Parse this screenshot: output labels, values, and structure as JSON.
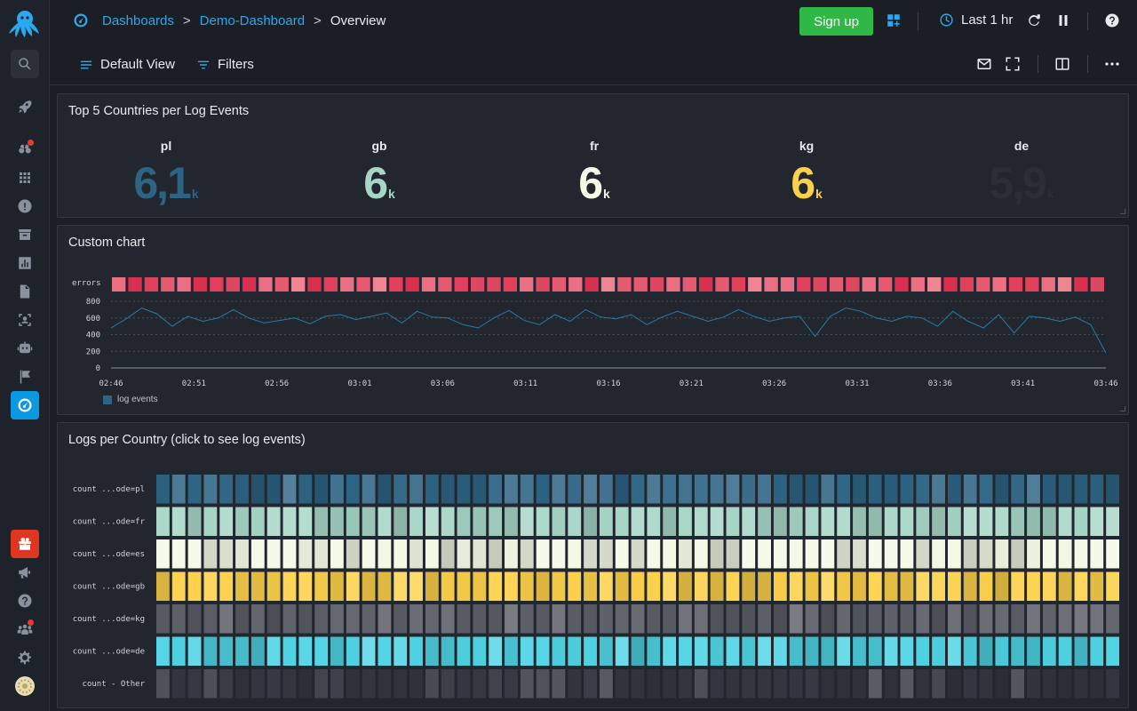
{
  "breadcrumb": {
    "root": "Dashboards",
    "dashboard": "Demo-Dashboard",
    "current": "Overview",
    "sep": ">"
  },
  "topbar": {
    "signup_label": "Sign up",
    "time_range": "Last 1 hr"
  },
  "toolbar": {
    "default_view": "Default View",
    "filters": "Filters"
  },
  "panels": {
    "top_countries": {
      "title": "Top 5 Countries per Log Events",
      "stats": [
        {
          "label": "pl",
          "value": "6,1",
          "unit": "k",
          "color": "#2d6383"
        },
        {
          "label": "gb",
          "value": "6",
          "unit": "k",
          "color": "#a7d6c7"
        },
        {
          "label": "fr",
          "value": "6",
          "unit": "k",
          "color": "#f4f9e6"
        },
        {
          "label": "kg",
          "value": "6",
          "unit": "k",
          "color": "#fcd14a"
        },
        {
          "label": "de",
          "value": "5,9",
          "unit": "k",
          "color": "#2a2e36"
        }
      ]
    },
    "custom_chart": {
      "title": "Custom chart"
    },
    "logs_per_country": {
      "title": "Logs per Country (click to see log events)"
    }
  },
  "chart_data": [
    {
      "type": "line",
      "title": "Custom chart",
      "xlabel": "",
      "ylabel": "",
      "x_ticks": [
        "02:46",
        "02:51",
        "02:56",
        "03:01",
        "03:06",
        "03:11",
        "03:16",
        "03:21",
        "03:26",
        "03:31",
        "03:36",
        "03:41",
        "03:46"
      ],
      "y_ticks": [
        0,
        200,
        400,
        600,
        800
      ],
      "ylim": [
        0,
        800
      ],
      "heat_row_label": "errors",
      "heat_row_cells": 61,
      "legend": "bottom-left",
      "series": [
        {
          "name": "log events",
          "color": "#2d6383",
          "values": [
            480,
            590,
            720,
            650,
            500,
            620,
            560,
            600,
            700,
            600,
            540,
            570,
            600,
            530,
            620,
            640,
            580,
            620,
            660,
            540,
            680,
            610,
            600,
            520,
            480,
            600,
            690,
            570,
            520,
            640,
            560,
            700,
            610,
            590,
            640,
            520,
            610,
            680,
            620,
            560,
            610,
            700,
            620,
            560,
            600,
            620,
            380,
            620,
            720,
            680,
            600,
            560,
            620,
            600,
            500,
            680,
            560,
            480,
            640,
            420,
            620,
            600,
            560,
            610,
            520,
            180
          ]
        }
      ]
    },
    {
      "type": "heatmap",
      "title": "Logs per Country (click to see log events)",
      "rows": [
        {
          "label": "count ...ode=pl",
          "color": "#2d6383"
        },
        {
          "label": "count ...ode=fr",
          "color": "#a7d6c7"
        },
        {
          "label": "count ...ode=es",
          "color": "#f4f9e6"
        },
        {
          "label": "count ...ode=gb",
          "color": "#fcd14a"
        },
        {
          "label": "count ...ode=kg",
          "color": "#5a5e66"
        },
        {
          "label": "count ...ode=de",
          "color": "#4fd4e4"
        },
        {
          "label": "count - Other",
          "color": "#343842"
        }
      ],
      "columns": 61
    }
  ]
}
